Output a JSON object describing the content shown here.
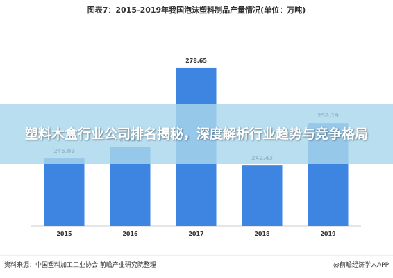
{
  "chart_data": {
    "type": "bar",
    "title": "图表7：2015-2019年我国泡沫塑料制品产量情况(单位：万吨)",
    "categories": [
      "2015",
      "2016",
      "2017",
      "2018",
      "2019"
    ],
    "values": [
      245.03,
      249.38,
      278.65,
      242.43,
      258.19
    ],
    "color": "#3d85e0",
    "ylim": [
      220,
      290
    ],
    "source": "资料来源：中国塑料加工工业协会 前瞻产业研究院整理"
  },
  "brand": "@前瞻经济学人APP",
  "banner": "塑料木盒行业公司排名揭秘，深度解析行业趋势与竞争格局"
}
